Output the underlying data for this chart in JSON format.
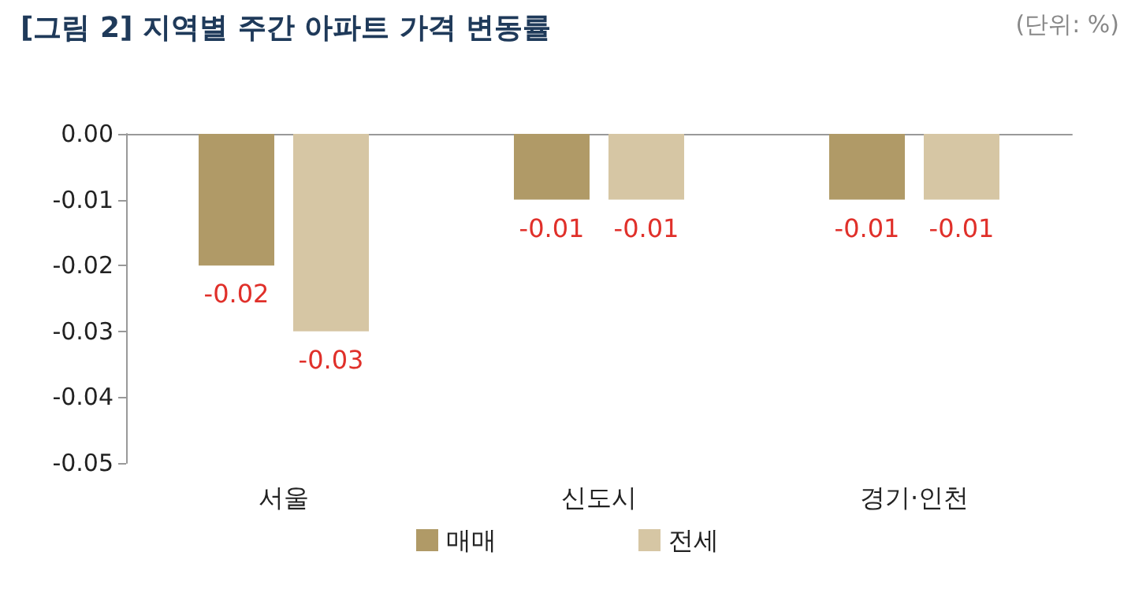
{
  "chart_data": {
    "type": "bar",
    "title": "[그림 2] 지역별 주간 아파트 가격 변동률",
    "annotations": [
      "(단위: %)"
    ],
    "categories": [
      "서울",
      "신도시",
      "경기·인천"
    ],
    "series": [
      {
        "name": "매매",
        "color": "#b09a67",
        "values": [
          -0.02,
          -0.01,
          -0.01
        ]
      },
      {
        "name": "전세",
        "color": "#d6c6a4",
        "values": [
          -0.03,
          -0.01,
          -0.01
        ]
      }
    ],
    "ylim": [
      -0.05,
      0
    ],
    "yticks": [
      {
        "value": -0.05,
        "label": "-0.05"
      },
      {
        "value": -0.04,
        "label": "-0.04"
      },
      {
        "value": -0.03,
        "label": "-0.03"
      },
      {
        "value": -0.02,
        "label": "-0.02"
      },
      {
        "value": -0.01,
        "label": "-0.01"
      },
      {
        "value": 0,
        "label": "0.00"
      }
    ],
    "data_labels": true,
    "legend": "bottom",
    "grid": false
  }
}
